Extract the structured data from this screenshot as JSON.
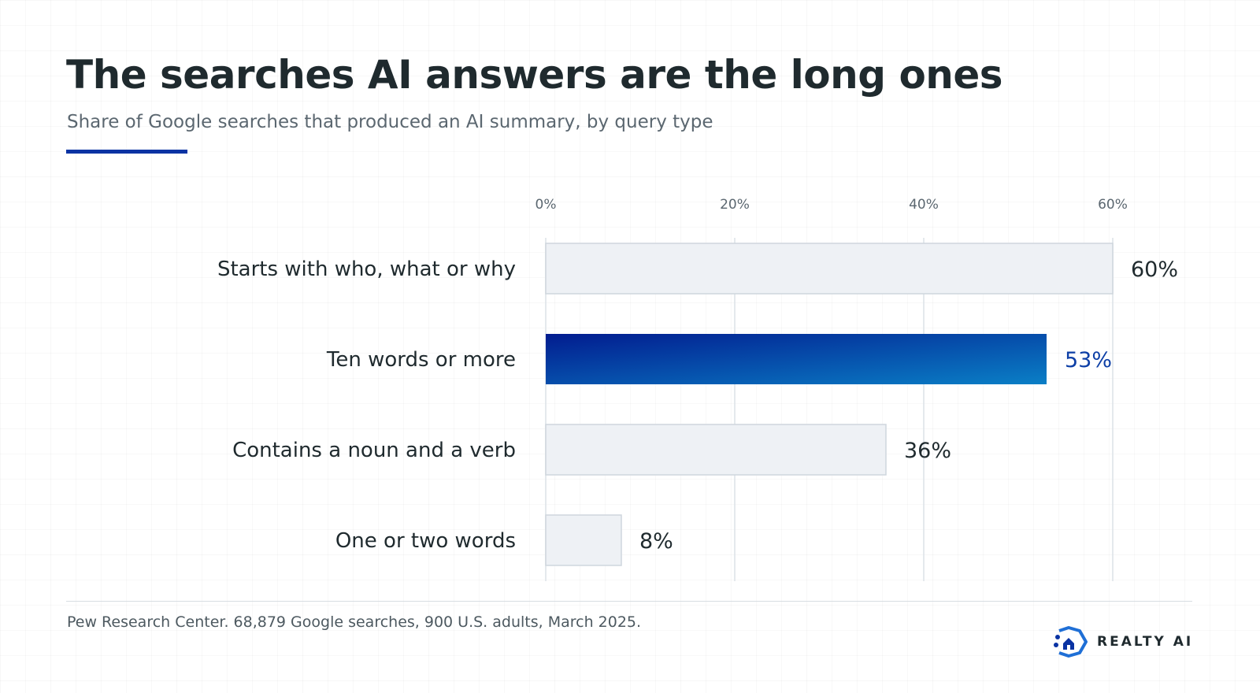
{
  "header": {
    "title": "The searches AI answers are the long ones",
    "subtitle": "Share of Google searches that produced an AI summary, by query type"
  },
  "chart_data": {
    "type": "bar",
    "orientation": "horizontal",
    "categories": [
      "Starts with who, what or why",
      "Ten words or more",
      "Contains a noun and a verb",
      "One or two words"
    ],
    "values": [
      60,
      53,
      36,
      8
    ],
    "value_labels": [
      "60%",
      "53%",
      "36%",
      "8%"
    ],
    "highlight": "Ten words or more",
    "xlim": [
      0,
      60
    ],
    "xticks": [
      0,
      20,
      40,
      60
    ],
    "xtick_labels": [
      "0%",
      "20%",
      "40%",
      "60%"
    ],
    "grid": true,
    "colors": {
      "bar": "#eef1f5",
      "bar_border": "#cfd6dd",
      "highlight_start": "#021c8f",
      "highlight_end": "#0a7fc6",
      "highlight_label": "#0d3fa6",
      "gridline": "#dce2e7"
    }
  },
  "footer": {
    "source": "Pew Research Center. 68,879 Google searches, 900 U.S. adults, March 2025.",
    "brand": "REALTY AI",
    "brand_icon": "realty-ai-logo-icon"
  }
}
